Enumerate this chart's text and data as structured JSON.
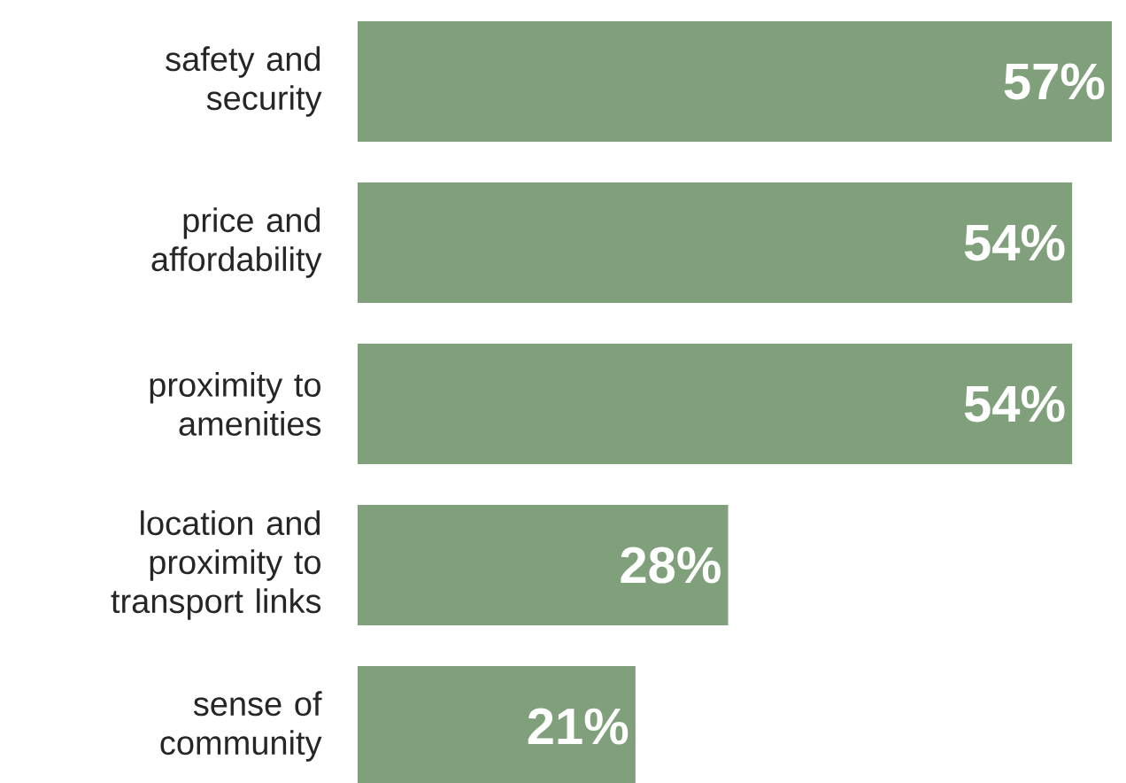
{
  "chart_data": {
    "type": "bar",
    "orientation": "horizontal",
    "categories": [
      "safety and security",
      "price and affordability",
      "proximity to amenities",
      "location and proximity to transport links",
      "sense of community"
    ],
    "values": [
      57,
      54,
      54,
      28,
      21
    ],
    "value_labels": [
      "57%",
      "54%",
      "54%",
      "28%",
      "21%"
    ],
    "color": "#80a07c"
  }
}
